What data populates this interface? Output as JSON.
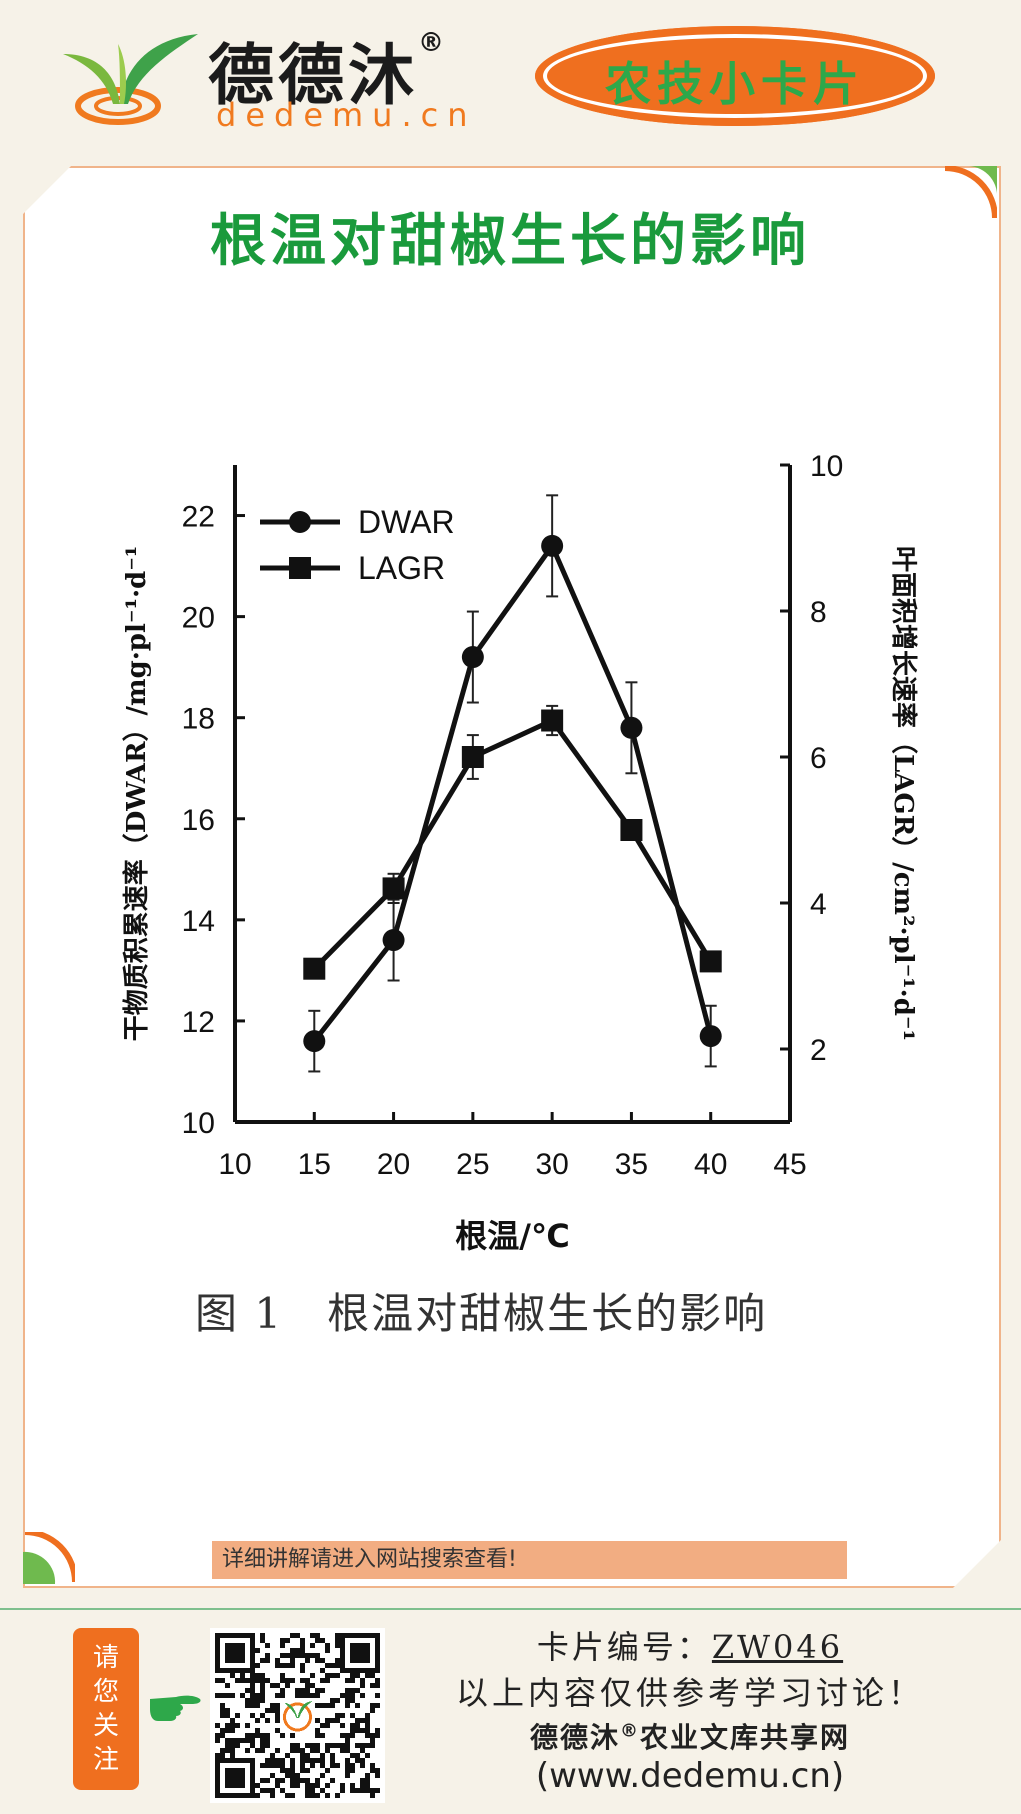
{
  "header": {
    "brand_name": "德德沐",
    "brand_reg": "®",
    "brand_url": "dedemu.cn",
    "badge_label": "农技小卡片"
  },
  "card": {
    "title": "根温对甜椒生长的影响",
    "caption": "图 1　根温对甜椒生长的影响",
    "note": "详细讲解请进入网站搜索查看!"
  },
  "chart_data": {
    "type": "line",
    "title": "",
    "xlabel": "根温/℃",
    "ylabel_left": "干物质积累速率（DWAR）/mg·pl⁻¹·d⁻¹",
    "ylabel_right": "叶面积增长速率（LAGR）/cm²·pl⁻¹·d⁻¹",
    "xlim": [
      10,
      45
    ],
    "xticks": [
      "10",
      "15",
      "20",
      "25",
      "30",
      "35",
      "40",
      "45"
    ],
    "ylim_left": [
      10,
      23
    ],
    "yticks_left": [
      "10",
      "12",
      "14",
      "16",
      "18",
      "20",
      "22"
    ],
    "ylim_right": [
      1,
      10
    ],
    "yticks_right": [
      "2",
      "4",
      "6",
      "8",
      "10"
    ],
    "grid": false,
    "legend_position": "top-left",
    "series": [
      {
        "name": "DWAR",
        "axis": "left",
        "marker": "circle",
        "x": [
          15,
          20,
          25,
          30,
          35,
          40
        ],
        "y": [
          11.6,
          13.6,
          19.2,
          21.4,
          17.8,
          11.7
        ],
        "err": [
          0.6,
          0.8,
          0.9,
          1.0,
          0.9,
          0.6
        ]
      },
      {
        "name": "LAGR",
        "axis": "right",
        "marker": "square",
        "x": [
          15,
          20,
          25,
          30,
          35,
          40
        ],
        "y": [
          3.1,
          4.2,
          6.0,
          6.5,
          5.0,
          3.2
        ],
        "err": [
          0.1,
          0.2,
          0.3,
          0.2,
          0.1,
          0.1
        ]
      }
    ]
  },
  "footer": {
    "follow_label": [
      "请",
      "您",
      "关",
      "注"
    ],
    "card_no_label": "卡片编号：",
    "card_no_value": "ZW046",
    "disclaimer": "以上内容仅供参考学习讨论！",
    "site_name": "德德沐",
    "site_reg": "®",
    "site_name_rest": "农业文库共享网",
    "site_url": "(www.dedemu.cn)"
  }
}
